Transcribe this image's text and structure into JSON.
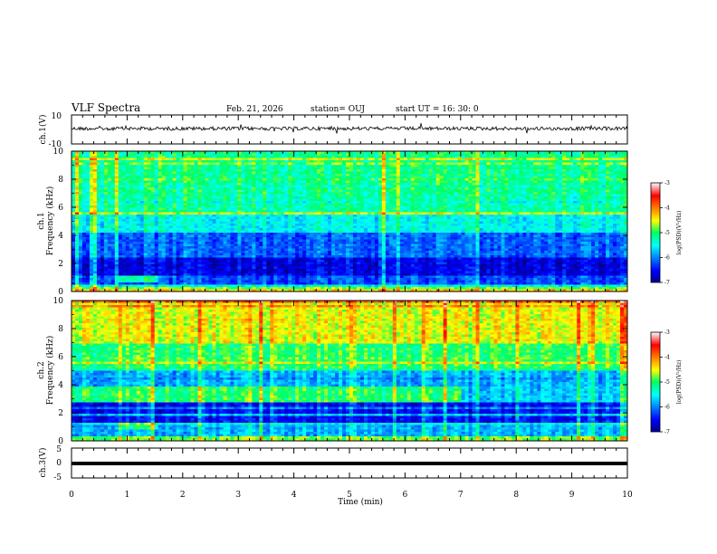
{
  "header": {
    "title": "VLF Spectra",
    "date": "Feb. 21, 2026",
    "station": "station= OUJ",
    "start": "start  UT =  16: 30: 0"
  },
  "chart_data": [
    {
      "type": "line",
      "name": "waveform-ch1",
      "ylabel": "ch.1(V)",
      "ylim": [
        -10,
        10
      ],
      "yticks": [
        "10",
        "-10"
      ],
      "xlim": [
        0,
        10
      ]
    },
    {
      "type": "heatmap",
      "name": "spectrogram-ch1",
      "ylabel": "ch.1\nFrequency (kHz)",
      "ylim": [
        0,
        10
      ],
      "yticks": [
        "0",
        "2",
        "4",
        "6",
        "8",
        "10"
      ],
      "xlim": [
        0,
        10
      ],
      "colorbar": {
        "label": "log(PSD)(V²/Hz)",
        "range": [
          -7,
          -3
        ],
        "ticks": [
          "-3",
          "-4",
          "-5",
          "-6",
          "-7"
        ]
      }
    },
    {
      "type": "heatmap",
      "name": "spectrogram-ch2",
      "ylabel": "ch.2\nFrequency (kHz)",
      "ylim": [
        0,
        10
      ],
      "yticks": [
        "0",
        "2",
        "4",
        "6",
        "8",
        "10"
      ],
      "xlim": [
        0,
        10
      ],
      "colorbar": {
        "label": "log(PSD)(V²/Hz)",
        "range": [
          -7,
          -3
        ],
        "ticks": [
          "-3",
          "-4",
          "-5",
          "-6",
          "-7"
        ]
      }
    },
    {
      "type": "line",
      "name": "waveform-ch3",
      "ylabel": "ch.3(V)",
      "ylim": [
        -5,
        5
      ],
      "yticks": [
        "5",
        "0",
        "-5"
      ],
      "xlim": [
        0,
        10
      ]
    }
  ],
  "xaxis": {
    "label": "Time (min)",
    "ticks": [
      "0",
      "1",
      "2",
      "3",
      "4",
      "5",
      "6",
      "7",
      "8",
      "9",
      "10"
    ]
  }
}
